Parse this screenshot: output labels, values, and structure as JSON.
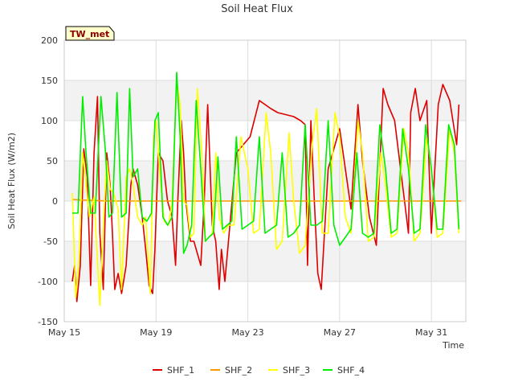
{
  "chart_data": {
    "type": "line",
    "title": "Soil Heat Flux",
    "xlabel": "Time",
    "ylabel": "Soil Heat Flux (W/m2)",
    "station_label": "TW_met",
    "xlim": [
      15,
      32.5
    ],
    "ylim": [
      -150,
      200
    ],
    "x_ticks": [
      {
        "value": 15,
        "label": "May 15"
      },
      {
        "value": 19,
        "label": "May 19"
      },
      {
        "value": 23,
        "label": "May 23"
      },
      {
        "value": 27,
        "label": "May 27"
      },
      {
        "value": 31,
        "label": "May 31"
      }
    ],
    "y_ticks": [
      -150,
      -100,
      -50,
      0,
      50,
      100,
      150,
      200
    ],
    "band_color": "#f2f2f2",
    "grid": true,
    "legend_position": "bottom-center",
    "series": [
      {
        "name": "SHF_1",
        "color": "#dd0000",
        "x": [
          15.35,
          15.45,
          15.55,
          15.7,
          15.85,
          16.0,
          16.15,
          16.3,
          16.45,
          16.55,
          16.7,
          16.85,
          17.0,
          17.1,
          17.2,
          17.35,
          17.5,
          17.7,
          17.9,
          18.0,
          18.2,
          18.4,
          18.55,
          18.7,
          18.85,
          18.95,
          19.1,
          19.3,
          19.5,
          19.7,
          19.85,
          19.95,
          20.1,
          20.2,
          20.3,
          20.5,
          20.65,
          20.8,
          20.95,
          21.1,
          21.25,
          21.45,
          21.6,
          21.75,
          21.85,
          22.0,
          22.5,
          23.1,
          23.5,
          24.0,
          24.3,
          25.0,
          25.3,
          25.5,
          25.6,
          25.75,
          25.9,
          26.05,
          26.2,
          26.5,
          27.0,
          27.5,
          27.8,
          28.0,
          28.3,
          28.6,
          28.9,
          29.1,
          29.4,
          30.0,
          30.1,
          30.3,
          30.5,
          30.8,
          31.0,
          31.3,
          31.5,
          31.8,
          32.1,
          32.2
        ],
        "y": [
          -100,
          -80,
          -125,
          -80,
          65,
          30,
          -105,
          60,
          130,
          -40,
          -110,
          60,
          20,
          -40,
          -110,
          -90,
          -115,
          -80,
          20,
          40,
          20,
          -20,
          -60,
          -105,
          -115,
          -60,
          60,
          50,
          0,
          -20,
          -80,
          0,
          100,
          60,
          0,
          -50,
          -50,
          -65,
          -80,
          0,
          120,
          -30,
          -50,
          -110,
          -60,
          -100,
          60,
          80,
          125,
          115,
          110,
          105,
          100,
          95,
          -80,
          100,
          0,
          -90,
          -110,
          40,
          90,
          -10,
          120,
          50,
          -20,
          -55,
          140,
          120,
          100,
          -40,
          110,
          140,
          100,
          125,
          -40,
          120,
          145,
          125,
          70,
          120
        ]
      },
      {
        "name": "SHF_2",
        "color": "#ff9900",
        "x": [
          15.35,
          16.0,
          17.0,
          18.0,
          19.0,
          20.0,
          21.0,
          22.0,
          23.0,
          24.0,
          25.0,
          26.0,
          27.0,
          28.0,
          29.0,
          30.0,
          31.0,
          32.0,
          32.3
        ],
        "y": [
          2,
          1,
          0,
          0,
          0,
          0,
          0,
          0,
          0,
          0,
          0,
          0,
          0,
          0,
          0,
          0,
          0,
          0,
          0
        ]
      },
      {
        "name": "SHF_3",
        "color": "#ffff00",
        "x": [
          15.35,
          15.5,
          15.65,
          15.8,
          15.95,
          16.1,
          16.3,
          16.55,
          16.7,
          16.85,
          17.0,
          17.15,
          17.35,
          17.5,
          17.7,
          17.85,
          18.0,
          18.2,
          18.4,
          18.55,
          18.75,
          18.9,
          19.0,
          19.15,
          19.35,
          19.55,
          19.7,
          19.9,
          20.05,
          20.2,
          20.35,
          20.5,
          20.65,
          20.8,
          21.0,
          21.15,
          21.3,
          21.45,
          21.6,
          21.75,
          21.95,
          22.15,
          22.4,
          22.7,
          23.0,
          23.25,
          23.5,
          23.8,
          24.0,
          24.25,
          24.5,
          24.8,
          25.0,
          25.25,
          25.5,
          25.8,
          26.0,
          26.25,
          26.5,
          26.8,
          27.0,
          27.25,
          27.5,
          27.8,
          28.0,
          28.25,
          28.5,
          28.8,
          29.0,
          29.25,
          29.5,
          29.8,
          30.0,
          30.25,
          30.5,
          30.8,
          31.0,
          31.25,
          31.5,
          31.8,
          32.0,
          32.2
        ],
        "y": [
          10,
          -120,
          -70,
          60,
          20,
          -20,
          5,
          -130,
          -30,
          50,
          15,
          10,
          -10,
          -110,
          30,
          40,
          20,
          -20,
          -30,
          -20,
          -115,
          80,
          100,
          40,
          -25,
          -30,
          0,
          150,
          120,
          0,
          -5,
          -45,
          -40,
          140,
          60,
          -50,
          -45,
          -40,
          60,
          -20,
          -40,
          -30,
          -30,
          80,
          40,
          -40,
          -35,
          110,
          60,
          -60,
          -50,
          85,
          0,
          -65,
          -55,
          70,
          115,
          -40,
          -40,
          110,
          80,
          -20,
          -40,
          100,
          60,
          -50,
          -45,
          60,
          20,
          -45,
          -40,
          90,
          60,
          -50,
          -40,
          80,
          40,
          -45,
          -40,
          90,
          60,
          -40
        ]
      },
      {
        "name": "SHF_4",
        "color": "#00ee00",
        "x": [
          15.35,
          15.6,
          15.8,
          15.95,
          16.15,
          16.35,
          16.6,
          16.8,
          16.95,
          17.1,
          17.3,
          17.5,
          17.7,
          17.85,
          18.0,
          18.2,
          18.4,
          18.6,
          18.8,
          18.95,
          19.1,
          19.3,
          19.5,
          19.7,
          19.9,
          20.05,
          20.2,
          20.35,
          20.55,
          20.75,
          20.95,
          21.15,
          21.3,
          21.5,
          21.7,
          21.9,
          22.1,
          22.3,
          22.5,
          22.75,
          23.0,
          23.25,
          23.5,
          23.75,
          24.0,
          24.25,
          24.5,
          24.75,
          25.0,
          25.25,
          25.5,
          25.75,
          26.0,
          26.25,
          26.5,
          26.75,
          27.0,
          27.25,
          27.5,
          27.75,
          28.0,
          28.25,
          28.5,
          28.75,
          29.0,
          29.25,
          29.5,
          29.75,
          30.0,
          30.25,
          30.5,
          30.75,
          31.0,
          31.25,
          31.5,
          31.75,
          32.0,
          32.2
        ],
        "y": [
          -15,
          -15,
          130,
          60,
          -15,
          -15,
          130,
          60,
          -20,
          -15,
          135,
          -20,
          -15,
          140,
          30,
          40,
          -20,
          -25,
          -15,
          100,
          110,
          -20,
          -30,
          -20,
          160,
          80,
          -65,
          -55,
          -30,
          125,
          40,
          -50,
          -45,
          -40,
          55,
          -35,
          -30,
          -25,
          80,
          -35,
          -30,
          -25,
          80,
          -40,
          -35,
          -30,
          60,
          -45,
          -40,
          -30,
          95,
          -30,
          -30,
          -25,
          100,
          -30,
          -55,
          -45,
          -35,
          60,
          -40,
          -45,
          -40,
          95,
          40,
          -40,
          -35,
          90,
          40,
          -40,
          -35,
          95,
          40,
          -35,
          -35,
          95,
          70,
          -35
        ]
      }
    ]
  }
}
